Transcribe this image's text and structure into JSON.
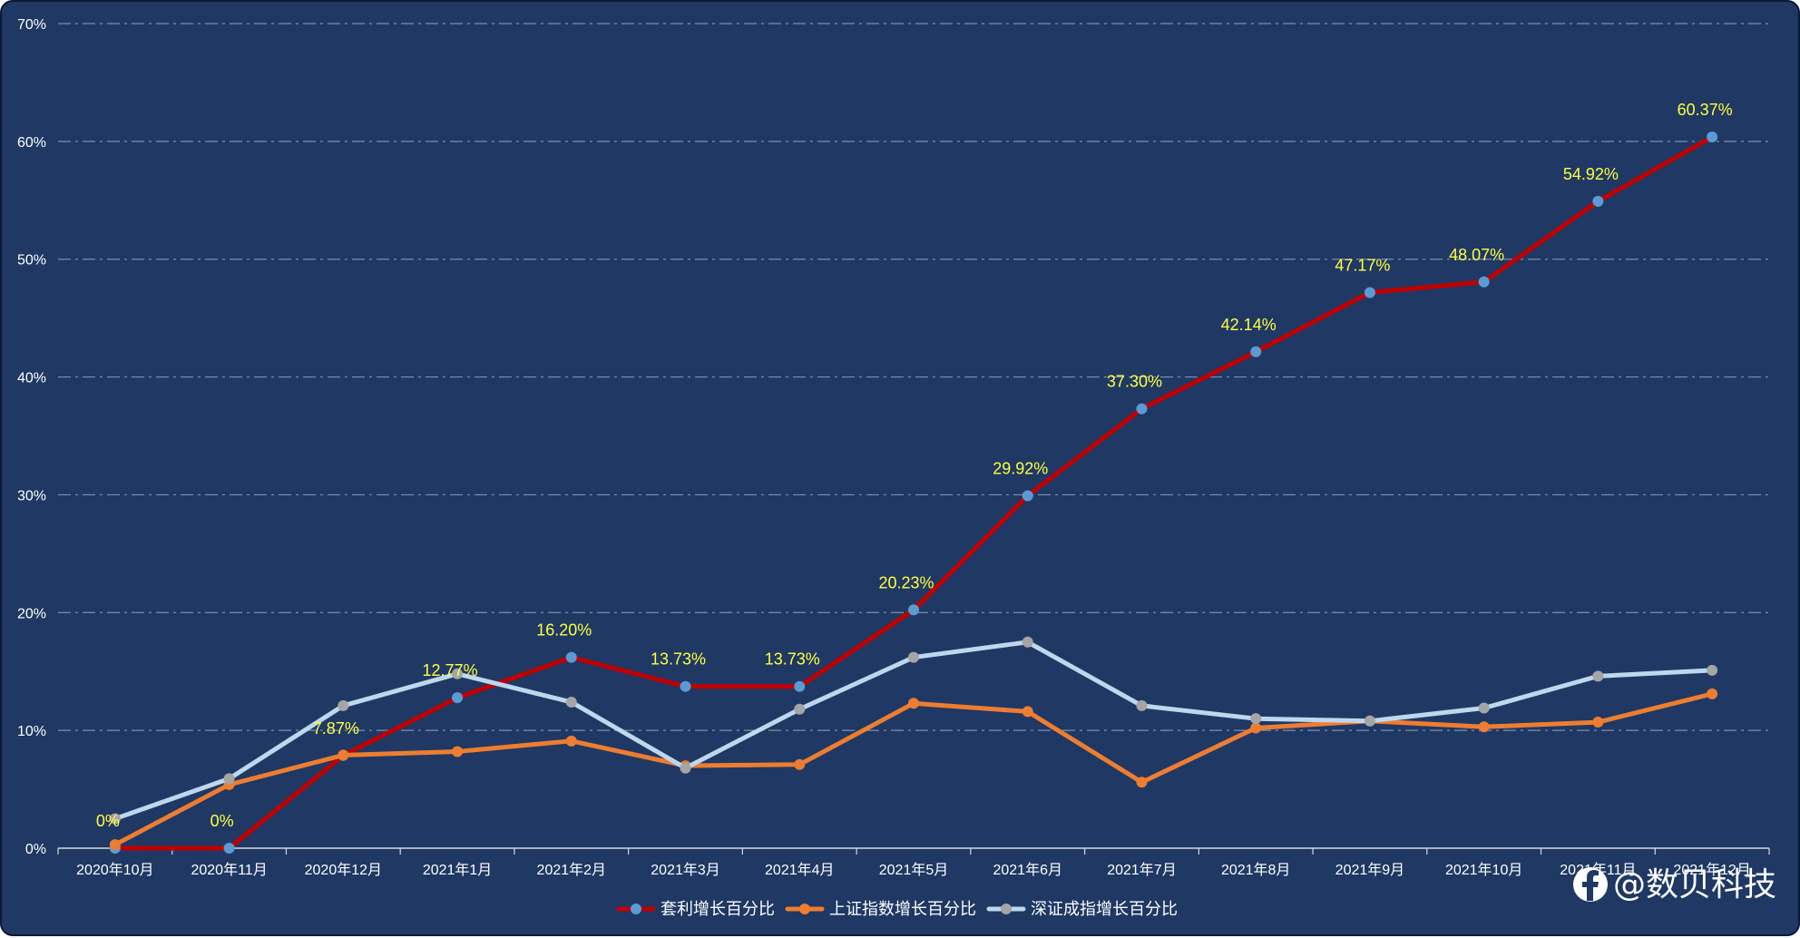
{
  "chart_data": {
    "type": "line",
    "categories": [
      "2020年10月",
      "2020年11月",
      "2020年12月",
      "2021年1月",
      "2021年2月",
      "2021年3月",
      "2021年4月",
      "2021年5月",
      "2021年6月",
      "2021年7月",
      "2021年8月",
      "2021年9月",
      "2021年10月",
      "2021年11月",
      "2021年12月"
    ],
    "ylim": [
      0,
      70
    ],
    "ytick_step": 10,
    "y_unit": "%",
    "grid": true,
    "legend_position": "bottom-center",
    "series": [
      {
        "name": "套利增长百分比",
        "color": "#c00000",
        "marker_color": "#5b9bd5",
        "values": [
          0,
          0,
          7.87,
          12.77,
          16.2,
          13.73,
          13.73,
          20.23,
          29.92,
          37.3,
          42.14,
          47.17,
          48.07,
          54.92,
          60.37
        ],
        "data_labels": [
          "0%",
          "0%",
          "7.87%",
          "12.77%",
          "16.20%",
          "13.73%",
          "13.73%",
          "20.23%",
          "29.92%",
          "37.30%",
          "42.14%",
          "47.17%",
          "48.07%",
          "54.92%",
          "60.37%"
        ]
      },
      {
        "name": "上证指数增长百分比",
        "color": "#ed7d31",
        "marker_color": "#ed7d31",
        "values": [
          0.3,
          5.4,
          7.9,
          8.2,
          9.1,
          7.0,
          7.1,
          12.3,
          11.6,
          5.6,
          10.2,
          10.8,
          10.3,
          10.7,
          13.1
        ]
      },
      {
        "name": "深证成指增长百分比",
        "color": "#bdd7ee",
        "marker_color": "#a5a5a5",
        "values": [
          2.5,
          5.9,
          12.1,
          14.8,
          12.4,
          6.8,
          11.8,
          16.2,
          17.5,
          12.1,
          11.0,
          10.8,
          11.9,
          14.6,
          15.1
        ]
      }
    ]
  },
  "watermark": {
    "text": "@数贝科技",
    "icon": "facebook-f-icon"
  }
}
